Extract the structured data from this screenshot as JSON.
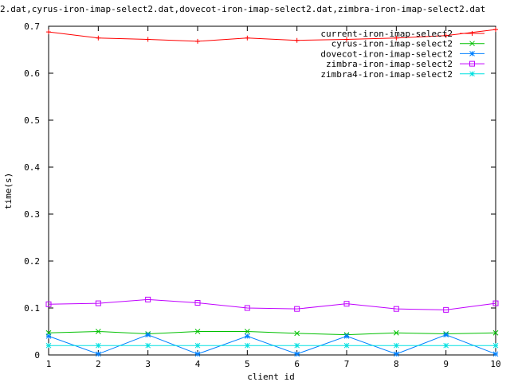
{
  "chart_data": {
    "type": "line",
    "title": "2.dat,cyrus-iron-imap-select2.dat,dovecot-iron-imap-select2.dat,zimbra-iron-imap-select2.dat",
    "xlabel": "client id",
    "ylabel": "time(s)",
    "xlim": [
      1,
      10
    ],
    "ylim": [
      0,
      0.7
    ],
    "x_ticks": [
      "1",
      "2",
      "3",
      "4",
      "5",
      "6",
      "7",
      "8",
      "9",
      "10"
    ],
    "y_ticks": [
      "0",
      "0.1",
      "0.2",
      "0.3",
      "0.4",
      "0.5",
      "0.6",
      "0.7"
    ],
    "grid": false,
    "legend_position": "top-right",
    "x": [
      1,
      2,
      3,
      4,
      5,
      6,
      7,
      8,
      9,
      10
    ],
    "series": [
      {
        "name": "current-iron-imap-select2",
        "color": "#ff0000",
        "marker": "plus",
        "values": [
          0.688,
          0.675,
          0.672,
          0.668,
          0.675,
          0.67,
          0.672,
          0.675,
          0.68,
          0.693
        ]
      },
      {
        "name": "cyrus-iron-imap-select2",
        "color": "#00c000",
        "marker": "cross",
        "values": [
          0.047,
          0.05,
          0.045,
          0.05,
          0.05,
          0.046,
          0.043,
          0.047,
          0.045,
          0.047
        ]
      },
      {
        "name": "dovecot-iron-imap-select2",
        "color": "#0080ff",
        "marker": "star",
        "values": [
          0.04,
          0.002,
          0.043,
          0.002,
          0.04,
          0.002,
          0.04,
          0.002,
          0.043,
          0.002
        ]
      },
      {
        "name": "zimbra-iron-imap-select2",
        "color": "#c000ff",
        "marker": "box",
        "values": [
          0.108,
          0.11,
          0.118,
          0.111,
          0.1,
          0.098,
          0.109,
          0.098,
          0.096,
          0.11
        ]
      },
      {
        "name": "zimbra4-iron-imap-select2",
        "color": "#00e0e0",
        "marker": "star",
        "values": [
          0.02,
          0.02,
          0.02,
          0.02,
          0.02,
          0.02,
          0.02,
          0.02,
          0.02,
          0.02
        ]
      }
    ]
  }
}
